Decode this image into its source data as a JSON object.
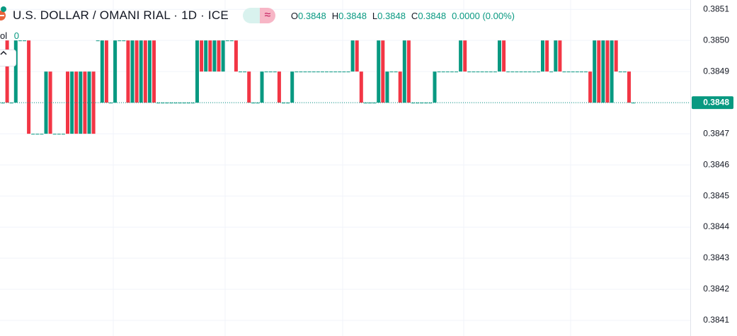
{
  "chart_data": {
    "type": "candlestick",
    "title": "U.S. DOLLAR / OMANI RIAL · 1D · ICE",
    "ohlc": [
      {
        "label": "O",
        "value": 0.3848
      },
      {
        "label": "H",
        "value": 0.3848
      },
      {
        "label": "L",
        "value": 0.3848
      },
      {
        "label": "C",
        "value": 0.3848
      }
    ],
    "change": "0.0000 (0.00%)",
    "volume_label": "ol",
    "volume": 0,
    "up_color": "#089981",
    "down_color": "#f23645",
    "grid": true,
    "ylim": [
      0.38405,
      0.38513
    ],
    "yticks": [
      0.3851,
      {
        "value": 0.385,
        "label": "0.3850"
      },
      0.3849,
      0.3848,
      0.3847,
      0.3846,
      0.3845,
      0.3844,
      0.3843,
      0.3842,
      0.3841
    ],
    "last_price": 0.3848,
    "open": [
      0.3848,
      0.385,
      0.3848,
      0.3848,
      0.385,
      0.385,
      0.385,
      0.3847,
      0.3847,
      0.3847,
      0.3847,
      0.3849,
      0.3847,
      0.3847,
      0.3847,
      0.3849,
      0.3847,
      0.3849,
      0.3847,
      0.3849,
      0.3847,
      0.3849,
      0.385,
      0.3848,
      0.385,
      0.3848,
      0.3848,
      0.385,
      0.385,
      0.385,
      0.3848,
      0.385,
      0.3848,
      0.385,
      0.3848,
      0.385,
      0.3848,
      0.3848,
      0.3848,
      0.3848,
      0.3848,
      0.3848,
      0.3848,
      0.3848,
      0.3848,
      0.3848,
      0.385,
      0.3849,
      0.385,
      0.3849,
      0.385,
      0.3849,
      0.385,
      0.385,
      0.385,
      0.3849,
      0.3849,
      0.3849,
      0.3848,
      0.3848,
      0.3848,
      0.3849,
      0.3849,
      0.3849,
      0.3849,
      0.3848,
      0.3848,
      0.3848,
      0.3849,
      0.3849,
      0.3849,
      0.3849,
      0.3849,
      0.3849,
      0.3849,
      0.3849,
      0.3849,
      0.3849,
      0.3849,
      0.3849,
      0.3849,
      0.3849,
      0.385,
      0.3849,
      0.3848,
      0.3848,
      0.3848,
      0.3848,
      0.385,
      0.3848,
      0.3849,
      0.3849,
      0.3849,
      0.3848,
      0.385,
      0.3848,
      0.3848,
      0.3848,
      0.3848,
      0.3848,
      0.3848,
      0.3849,
      0.3849,
      0.3849,
      0.3849,
      0.3849,
      0.3849,
      0.385,
      0.3849,
      0.3849,
      0.3849,
      0.3849,
      0.3849,
      0.3849,
      0.3849,
      0.3849,
      0.385,
      0.3849,
      0.3849,
      0.3849,
      0.3849,
      0.3849,
      0.3849,
      0.3849,
      0.3849,
      0.3849,
      0.385,
      0.3849,
      0.3849,
      0.385,
      0.3849,
      0.3849,
      0.3849,
      0.3849,
      0.3849,
      0.3849,
      0.3849,
      0.3848,
      0.385,
      0.3848,
      0.385,
      0.3848,
      0.385,
      0.3849,
      0.3849,
      0.3849,
      0.3848
    ],
    "close": [
      0.3848,
      0.3848,
      0.3848,
      0.385,
      0.385,
      0.385,
      0.3847,
      0.3847,
      0.3847,
      0.3847,
      0.3849,
      0.3847,
      0.3847,
      0.3847,
      0.3847,
      0.3847,
      0.3849,
      0.3847,
      0.3849,
      0.3847,
      0.3849,
      0.3847,
      0.385,
      0.385,
      0.3848,
      0.3848,
      0.385,
      0.385,
      0.385,
      0.3848,
      0.385,
      0.3848,
      0.385,
      0.3848,
      0.385,
      0.3848,
      0.3848,
      0.3848,
      0.3848,
      0.3848,
      0.3848,
      0.3848,
      0.3848,
      0.3848,
      0.3848,
      0.385,
      0.3849,
      0.385,
      0.3849,
      0.385,
      0.3849,
      0.385,
      0.385,
      0.385,
      0.3849,
      0.3849,
      0.3849,
      0.3848,
      0.3848,
      0.3848,
      0.3849,
      0.3849,
      0.3849,
      0.3849,
      0.3848,
      0.3848,
      0.3848,
      0.3849,
      0.3849,
      0.3849,
      0.3849,
      0.3849,
      0.3849,
      0.3849,
      0.3849,
      0.3849,
      0.3849,
      0.3849,
      0.3849,
      0.3849,
      0.3849,
      0.385,
      0.3849,
      0.3848,
      0.3848,
      0.3848,
      0.3848,
      0.385,
      0.3848,
      0.3849,
      0.3849,
      0.3849,
      0.3848,
      0.385,
      0.3848,
      0.3848,
      0.3848,
      0.3848,
      0.3848,
      0.3848,
      0.3849,
      0.3849,
      0.3849,
      0.3849,
      0.3849,
      0.3849,
      0.385,
      0.3849,
      0.3849,
      0.3849,
      0.3849,
      0.3849,
      0.3849,
      0.3849,
      0.3849,
      0.385,
      0.3849,
      0.3849,
      0.3849,
      0.3849,
      0.3849,
      0.3849,
      0.3849,
      0.3849,
      0.3849,
      0.385,
      0.3849,
      0.3849,
      0.385,
      0.3849,
      0.3849,
      0.3849,
      0.3849,
      0.3849,
      0.3849,
      0.3849,
      0.3848,
      0.385,
      0.3848,
      0.385,
      0.3848,
      0.385,
      0.3849,
      0.3849,
      0.3849,
      0.3848,
      0.3848
    ]
  }
}
